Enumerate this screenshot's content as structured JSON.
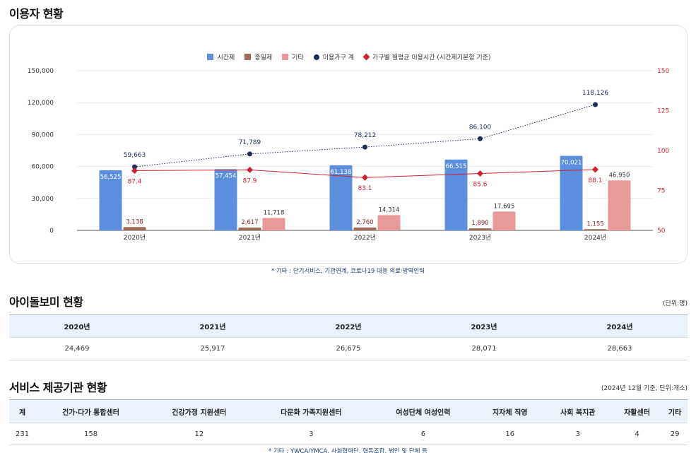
{
  "section1": {
    "title": "이용자 현황",
    "note": "* 기타 : 단기서비스, 기관연계, 코로나19 대응 의료·방역인력"
  },
  "chart_data": {
    "type": "bar",
    "categories": [
      "2020년",
      "2021년",
      "2022년",
      "2023년",
      "2024년"
    ],
    "series": [
      {
        "name": "시간제",
        "kind": "bar",
        "color": "#5b8fde",
        "labelColor": "#ffffff",
        "values": [
          56525,
          57454,
          61138,
          66515,
          70021
        ],
        "labels": [
          "56,525",
          "57,454",
          "61,138",
          "66,515",
          "70,021"
        ]
      },
      {
        "name": "종일제",
        "kind": "bar",
        "color": "#9c6c58",
        "labelColor": "#8a1f1f",
        "values": [
          3138,
          2617,
          2760,
          1890,
          1155
        ],
        "labels": [
          "3,138",
          "2,617",
          "2,760",
          "1,890",
          "1,155"
        ]
      },
      {
        "name": "기타",
        "kind": "bar",
        "color": "#e89999",
        "labelColor": "#333333",
        "values": [
          null,
          11718,
          14314,
          17695,
          46950
        ],
        "labels": [
          "",
          "11,718",
          "14,314",
          "17,695",
          "46,950"
        ]
      },
      {
        "name": "이용가구 계",
        "kind": "line-dotted",
        "color": "#1c2f5c",
        "labelColor": "#1c2f5c",
        "values": [
          59663,
          71789,
          78212,
          86100,
          118126
        ],
        "labels": [
          "59,663",
          "71,789",
          "78,212",
          "86,100",
          "118,126"
        ]
      },
      {
        "name": "가구별 월평균 이용시간 (시간제기본형 기준)",
        "kind": "line-right",
        "color": "#d1212f",
        "labelColor": "#d1212f",
        "values": [
          87.4,
          87.9,
          83.1,
          85.6,
          88.1
        ],
        "labels": [
          "87.4",
          "87.9",
          "83.1",
          "85.6",
          "88.1"
        ]
      }
    ],
    "yleft": {
      "min": 0,
      "max": 150000,
      "ticks": [
        "0",
        "30,000",
        "60,000",
        "90,000",
        "120,000",
        "150,000"
      ],
      "tickValues": [
        0,
        30000,
        60000,
        90000,
        120000,
        150000
      ]
    },
    "yright": {
      "min": 50,
      "max": 150,
      "ticks": [
        "50",
        "75",
        "100",
        "125",
        "150"
      ],
      "tickValues": [
        50,
        75,
        100,
        125,
        150
      ]
    },
    "legend_position": "top-center",
    "grid": true
  },
  "section2": {
    "title": "아이돌보미 현황",
    "unit": "(단위:명)",
    "headers": [
      "2020년",
      "2021년",
      "2022년",
      "2023년",
      "2024년"
    ],
    "values": [
      "24,469",
      "25,917",
      "26,675",
      "28,071",
      "28,663"
    ]
  },
  "section3": {
    "title": "서비스 제공기관 현황",
    "unit": "(2024년 12월 기준, 단위:개소)",
    "headers": [
      "계",
      "건가·다가 통합센터",
      "건강가정 지원센터",
      "다문화 가족지원센터",
      "여성단체 여성인력",
      "지자체 직영",
      "사회 복지관",
      "자활센터",
      "기타"
    ],
    "values": [
      "231",
      "158",
      "12",
      "3",
      "6",
      "16",
      "3",
      "4",
      "29"
    ],
    "note": "* 기타 : YWCA/YMCA, 사회협력단, 협동조합, 법인 및 단체 등"
  }
}
